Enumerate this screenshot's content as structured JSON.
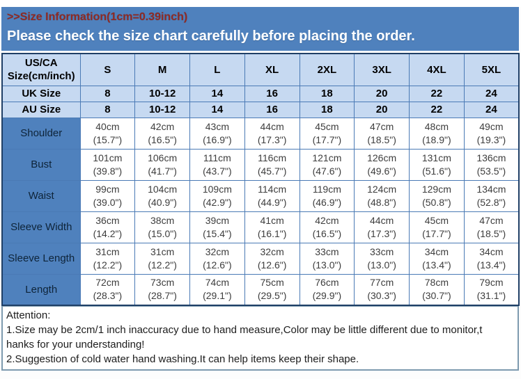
{
  "header": {
    "title": ">>Size Information(1cm=0.39inch)",
    "notice": "Please check the size chart carefully before placing the order."
  },
  "colors": {
    "banner_blue": "#4F81BD",
    "header_light_blue": "#C6D9F1",
    "title_red": "#8E2A24",
    "outer_border_navy": "#1F3F66",
    "inner_border_blue": "#4A7AB5",
    "attention_border": "#7D9AAF"
  },
  "table": {
    "corner_header": "US/CA Size(cm/inch)",
    "size_columns": [
      "S",
      "M",
      "L",
      "XL",
      "2XL",
      "3XL",
      "4XL",
      "5XL"
    ],
    "size_rows": [
      {
        "label": "UK Size",
        "values": [
          "8",
          "10-12",
          "14",
          "16",
          "18",
          "20",
          "22",
          "24"
        ]
      },
      {
        "label": "AU Size",
        "values": [
          "8",
          "10-12",
          "14",
          "16",
          "18",
          "20",
          "22",
          "24"
        ]
      }
    ],
    "measure_rows": [
      {
        "label": "Shoulder",
        "cm": [
          "40cm",
          "42cm",
          "43cm",
          "44cm",
          "45cm",
          "47cm",
          "48cm",
          "49cm"
        ],
        "inch": [
          "(15.7\")",
          "(16.5\")",
          "(16.9\")",
          "(17.3\")",
          "(17.7\")",
          "(18.5\")",
          "(18.9\")",
          "(19.3\")"
        ]
      },
      {
        "label": "Bust",
        "cm": [
          "101cm",
          "106cm",
          "111cm",
          "116cm",
          "121cm",
          "126cm",
          "131cm",
          "136cm"
        ],
        "inch": [
          "(39.8\")",
          "(41.7\")",
          "(43.7\")",
          "(45.7\")",
          "(47.6\")",
          "(49.6\")",
          "(51.6\")",
          "(53.5\")"
        ]
      },
      {
        "label": "Waist",
        "cm": [
          "99cm",
          "104cm",
          "109cm",
          "114cm",
          "119cm",
          "124cm",
          "129cm",
          "134cm"
        ],
        "inch": [
          "(39.0\")",
          "(40.9\")",
          "(42.9\")",
          "(44.9\")",
          "(46.9\")",
          "(48.8\")",
          "(50.8\")",
          "(52.8\")"
        ]
      },
      {
        "label": "Sleeve Width",
        "cm": [
          "36cm",
          "38cm",
          "39cm",
          "41cm",
          "42cm",
          "44cm",
          "45cm",
          "47cm"
        ],
        "inch": [
          "(14.2\")",
          "(15.0\")",
          "(15.4\")",
          "(16.1\")",
          "(16.5\")",
          "(17.3\")",
          "(17.7\")",
          "(18.5\")"
        ]
      },
      {
        "label": "Sleeve Length",
        "cm": [
          "31cm",
          "31cm",
          "32cm",
          "32cm",
          "33cm",
          "33cm",
          "34cm",
          "34cm"
        ],
        "inch": [
          "(12.2\")",
          "(12.2\")",
          "(12.6\")",
          "(12.6\")",
          "(13.0\")",
          "(13.0\")",
          "(13.4\")",
          "(13.4\")"
        ]
      },
      {
        "label": "Length",
        "cm": [
          "72cm",
          "73cm",
          "74cm",
          "75cm",
          "76cm",
          "77cm",
          "78cm",
          "79cm"
        ],
        "inch": [
          "(28.3\")",
          "(28.7\")",
          "(29.1\")",
          "(29.5\")",
          "(29.9\")",
          "(30.3\")",
          "(30.7\")",
          "(31.1\")"
        ]
      }
    ]
  },
  "attention": {
    "title": "Attention:",
    "lines": [
      "1.Size may be 2cm/1 inch inaccuracy due to hand measure,Color may be little different due to monitor,t",
      "hanks for your understanding!",
      "2.Suggestion of cold water hand washing.It can help items keep their shape."
    ]
  }
}
